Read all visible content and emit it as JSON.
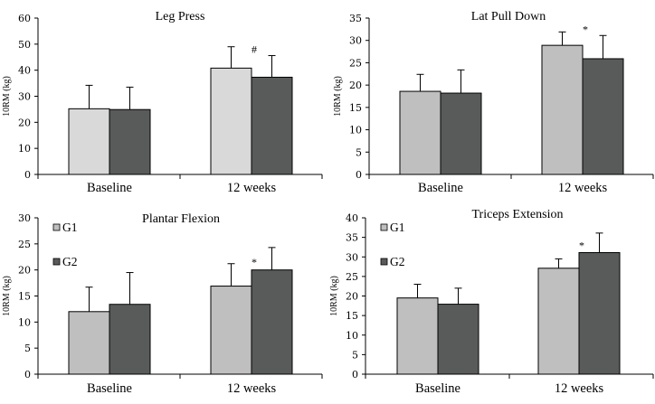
{
  "chart_data": [
    {
      "type": "bar",
      "title": "Leg Press",
      "ylabel": "10RM (kg)",
      "xlabel": "",
      "categories": [
        "Baseline",
        "12 weeks"
      ],
      "ylim": [
        0,
        60
      ],
      "yticks": [
        0,
        10,
        20,
        30,
        40,
        50,
        60
      ],
      "series": [
        {
          "name": "G1",
          "values": [
            25.2,
            40.8
          ],
          "errors": [
            9.0,
            8.2
          ],
          "color": "#d9d9d9"
        },
        {
          "name": "G2",
          "values": [
            24.9,
            37.3
          ],
          "errors": [
            8.6,
            8.3
          ],
          "color": "#595b5a"
        }
      ],
      "annotations": [
        {
          "text": "#",
          "category": "12 weeks",
          "y": 48
        }
      ],
      "legend": null,
      "grid": false
    },
    {
      "type": "bar",
      "title": "Lat Pull Down",
      "ylabel": "10RM (kg)",
      "xlabel": "",
      "categories": [
        "Baseline",
        "12 weeks"
      ],
      "ylim": [
        0,
        35
      ],
      "yticks": [
        0,
        5,
        10,
        15,
        20,
        25,
        30,
        35
      ],
      "series": [
        {
          "name": "G1",
          "values": [
            18.6,
            28.9
          ],
          "errors": [
            3.8,
            3.0
          ],
          "color": "#bfbfbf"
        },
        {
          "name": "G2",
          "values": [
            18.2,
            25.9
          ],
          "errors": [
            5.2,
            5.2
          ],
          "color": "#595b5a"
        }
      ],
      "annotations": [
        {
          "text": "*",
          "category": "12 weeks",
          "y": 32.5
        }
      ],
      "legend": null,
      "grid": false
    },
    {
      "type": "bar",
      "title": "Plantar Flexion",
      "ylabel": "10RM (kg)",
      "xlabel": "",
      "categories": [
        "Baseline",
        "12 weeks"
      ],
      "ylim": [
        0,
        30
      ],
      "yticks": [
        0,
        5,
        10,
        15,
        20,
        25,
        30
      ],
      "series": [
        {
          "name": "G1",
          "values": [
            12.0,
            16.9
          ],
          "errors": [
            4.7,
            4.3
          ],
          "color": "#bfbfbf"
        },
        {
          "name": "G2",
          "values": [
            13.4,
            20.0
          ],
          "errors": [
            6.1,
            4.3
          ],
          "color": "#595b5a"
        }
      ],
      "annotations": [
        {
          "text": "*",
          "category": "12 weeks",
          "y": 21.5
        }
      ],
      "legend": {
        "position": "top-left",
        "entries": [
          "G1",
          "G2"
        ]
      },
      "grid": false
    },
    {
      "type": "bar",
      "title": "Triceps  Extension",
      "ylabel": "10RM (kg)",
      "xlabel": "",
      "categories": [
        "Baseline",
        "12 weeks"
      ],
      "ylim": [
        0,
        40
      ],
      "yticks": [
        0,
        5,
        10,
        15,
        20,
        25,
        30,
        35,
        40
      ],
      "series": [
        {
          "name": "G1",
          "values": [
            19.5,
            27.1
          ],
          "errors": [
            3.5,
            2.4
          ],
          "color": "#bfbfbf"
        },
        {
          "name": "G2",
          "values": [
            17.9,
            31.1
          ],
          "errors": [
            4.1,
            5.0
          ],
          "color": "#595b5a"
        }
      ],
      "annotations": [
        {
          "text": "*",
          "category": "12 weeks",
          "y": 33
        }
      ],
      "legend": {
        "position": "top-left",
        "entries": [
          "G1",
          "G2"
        ]
      },
      "grid": false
    }
  ]
}
